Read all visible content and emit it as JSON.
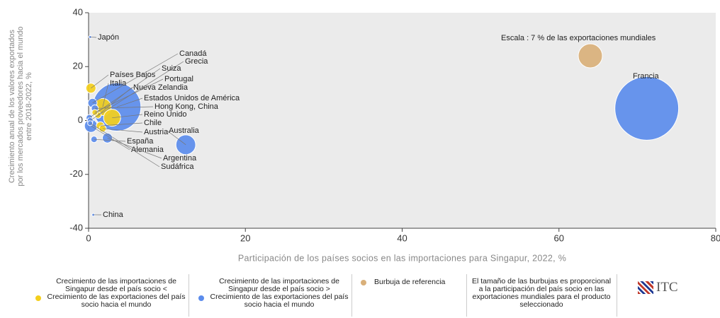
{
  "chart_data": {
    "type": "bubble",
    "xlabel": "Participación de los países socios en las importaciones para Singapur, 2022, %",
    "ylabel": [
      "Crecimiento anual de los valores exportados",
      "por los mercados proveedores hacia el mundo",
      "entre 2018-2022, %"
    ],
    "xlim": [
      0,
      80
    ],
    "xticks": [
      0,
      20,
      40,
      60,
      80
    ],
    "ylim": [
      -40,
      40
    ],
    "yticks": [
      -40,
      -20,
      0,
      20,
      40
    ],
    "series": [
      {
        "name": "Crecimiento de las importaciones de Singapur desde el país socio < Crecimiento de las exportaciones del país socio hacia el mundo",
        "color": "#f4cf1c",
        "labels": [
          "Países Bajos",
          "Italia",
          "Reino Unido",
          "Nueva Zelandia",
          "Chile",
          "Austria",
          "Portugal"
        ],
        "x": [
          0.3,
          1.8,
          3,
          1.2,
          1.5,
          1.8,
          0.8
        ],
        "values": [
          12,
          5,
          1,
          2,
          -2,
          -3,
          3
        ],
        "sizes": [
          1.2,
          3.5,
          3.5,
          0.5,
          0.8,
          0.6,
          0.4
        ]
      },
      {
        "name": "Crecimiento de las importaciones de Singapur desde el país socio > Crecimiento de las exportaciones del país socio hacia el mundo",
        "color": "#5b8cec",
        "labels": [
          "Japón",
          "China",
          "Francia",
          "Estados Unidos de América",
          "Hong Kong, China",
          "Canadá",
          "Grecia",
          "Suiza",
          "Australia",
          "España",
          "Alemania",
          "Argentina",
          "Sudáfrica"
        ],
        "x": [
          0.2,
          0.6,
          71.2,
          3.6,
          0.8,
          0.5,
          0.2,
          0.1,
          12.4,
          0.7,
          0.3,
          2.4,
          0.2
        ],
        "values": [
          31,
          -35,
          4.5,
          5,
          4.5,
          6.5,
          0,
          1,
          -9,
          -7,
          -2,
          -6.5,
          -1
        ],
        "sizes": [
          0.05,
          0.05,
          49,
          28,
          0.6,
          1,
          0.4,
          0.5,
          4.7,
          0.5,
          2,
          1.2,
          0.3
        ]
      },
      {
        "name": "Burbuja de referencia",
        "color": "#d9b07a",
        "labels": [
          "Escala : 7 % de las exportaciones mundiales"
        ],
        "x": [
          64
        ],
        "values": [
          24
        ],
        "sizes": [
          7
        ]
      }
    ],
    "size_note": "El tamaño de las burbujas es proporcional a la participación del país socio en las exportaciones mundiales para el producto seleccionado",
    "logo": "ITC"
  }
}
